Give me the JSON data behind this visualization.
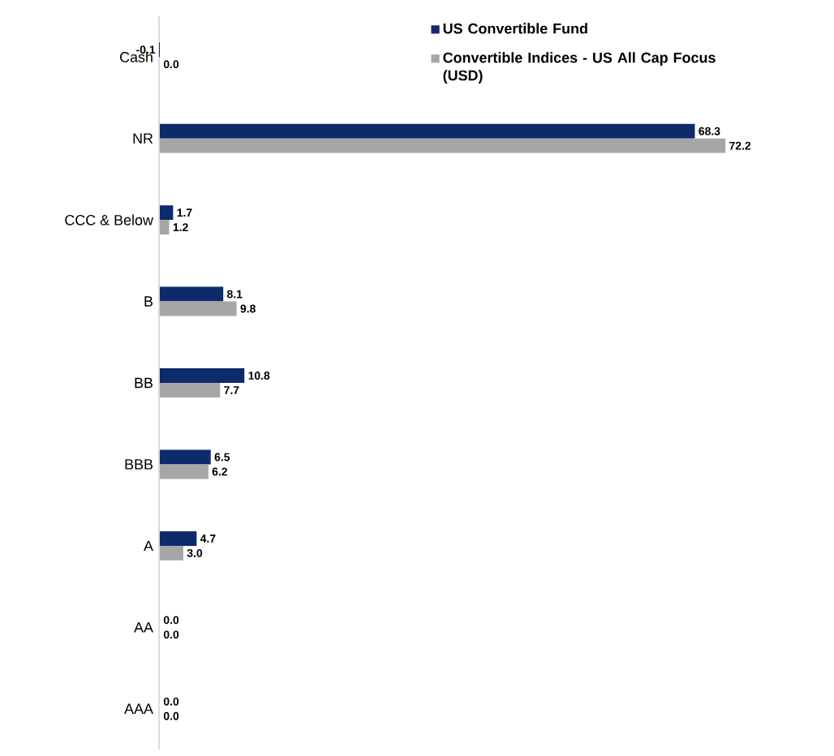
{
  "chart_data": {
    "type": "bar",
    "orientation": "horizontal",
    "categories": [
      "Cash",
      "NR",
      "CCC & Below",
      "B",
      "BB",
      "BBB",
      "A",
      "AA",
      "AAA"
    ],
    "series": [
      {
        "name": "US Convertible Fund",
        "color": "#0d2a6b",
        "values": [
          -0.1,
          68.3,
          1.7,
          8.1,
          10.8,
          6.5,
          4.7,
          0.0,
          0.0
        ],
        "value_labels": [
          "-0.1",
          "68.3",
          "1.7",
          "8.1",
          "10.8",
          "6.5",
          "4.7",
          "0.0",
          "0.0"
        ]
      },
      {
        "name": "Convertible Indices - US All Cap Focus (USD)",
        "color": "#a6a6a6",
        "values": [
          0.0,
          72.2,
          1.2,
          9.8,
          7.7,
          6.2,
          3.0,
          0.0,
          0.0
        ],
        "value_labels": [
          "0.0",
          "72.2",
          "1.2",
          "9.8",
          "7.7",
          "6.2",
          "3.0",
          "0.0",
          "0.0"
        ]
      }
    ],
    "legend": "top right"
  }
}
